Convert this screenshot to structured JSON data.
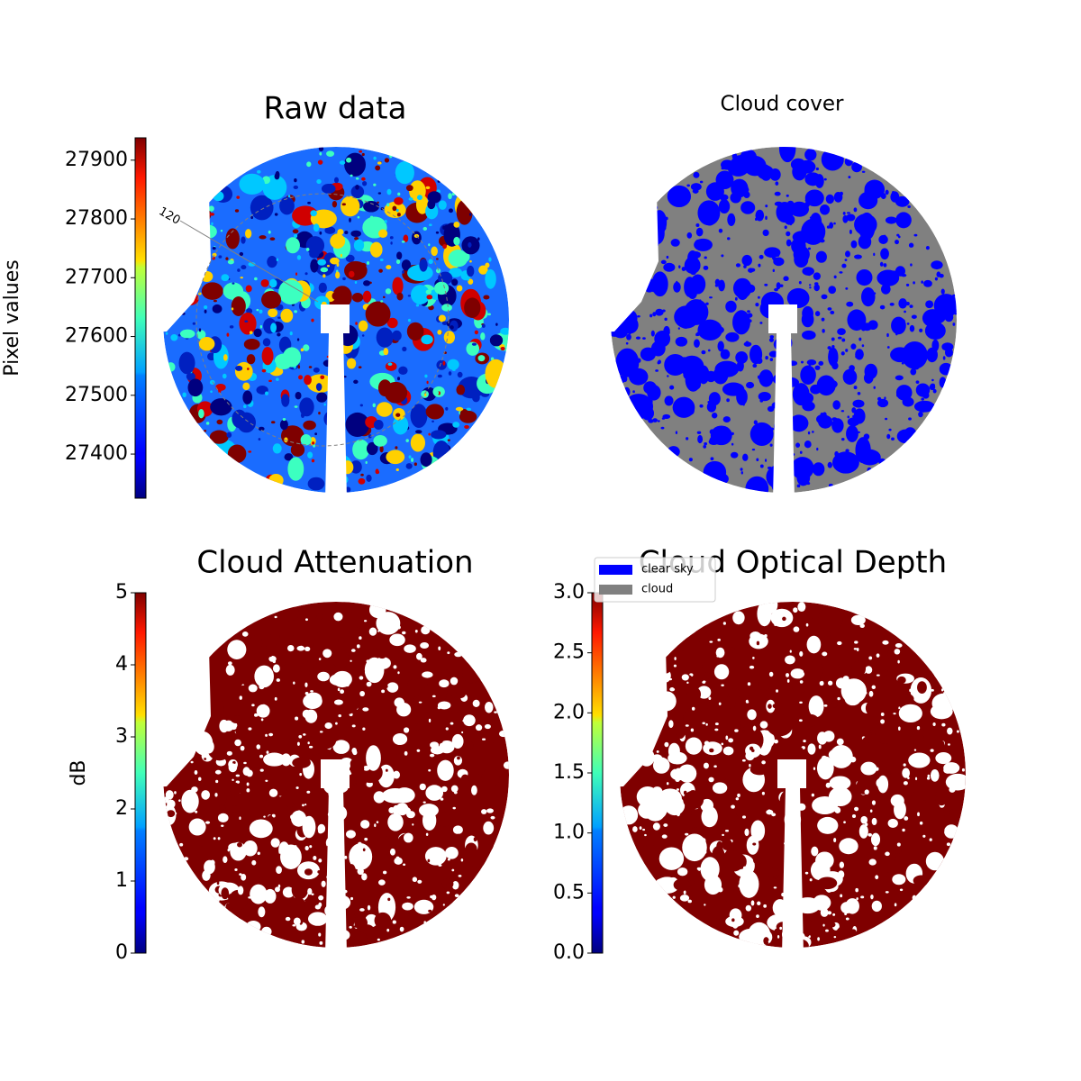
{
  "chart_data": [
    {
      "type": "image",
      "title": "Raw data",
      "colormap": "jet",
      "ylabel": "Pixel values",
      "ylim": [
        27325,
        27938
      ],
      "yticks": [
        27400,
        27500,
        27600,
        27700,
        27800,
        27900
      ],
      "annotations": [
        "120"
      ]
    },
    {
      "type": "image",
      "title": "Cloud cover",
      "series": [
        {
          "name": "clear sky",
          "color": "#0000ff"
        },
        {
          "name": "cloud",
          "color": "#808080"
        }
      ]
    },
    {
      "type": "image",
      "title": "Cloud Attenuation",
      "colormap": "jet",
      "ylabel": "dB",
      "ylim": [
        0,
        5
      ],
      "yticks": [
        0,
        1,
        2,
        3,
        4,
        5
      ]
    },
    {
      "type": "image",
      "title": "Cloud Optical Depth",
      "colormap": "jet",
      "ylim": [
        0,
        3
      ],
      "yticks": [
        {
          "value": 0,
          "label": "0.0"
        },
        {
          "value": 0.5,
          "label": "0.5"
        },
        {
          "value": 1,
          "label": "1.0"
        },
        {
          "value": 1.5,
          "label": "1.5"
        },
        {
          "value": 2,
          "label": "2.0"
        },
        {
          "value": 2.5,
          "label": "2.5"
        },
        {
          "value": 3,
          "label": "3.0"
        }
      ]
    }
  ]
}
